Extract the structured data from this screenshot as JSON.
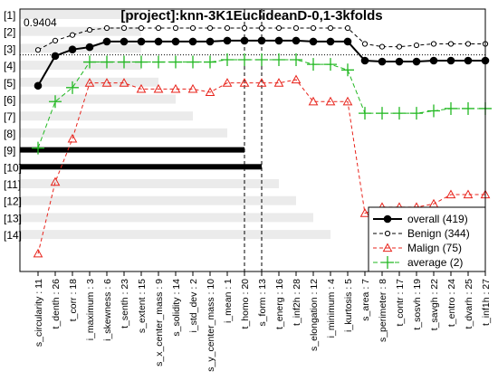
{
  "chart_data": {
    "type": "line",
    "title": "[project]:knn-3K1EuclideanD-0,1-3kfolds",
    "annotation": "0.9404",
    "row_labels": [
      "[1]",
      "[2]",
      "[3]",
      "[4]",
      "[5]",
      "[6]",
      "[7]",
      "[8]",
      "[9]",
      "[10]",
      "[11]",
      "[12]",
      "[13]",
      "[14]"
    ],
    "categories": [
      "s_circularity : 11",
      "t_denth : 26",
      "t_corr : 18",
      "i_maximum : 3",
      "i_skewness : 6",
      "t_senth : 23",
      "s_extent : 15",
      "s_x_center_mass : 9",
      "s_solidity : 14",
      "i_std_dev : 2",
      "s_y_center_mass : 10",
      "i_mean : 1",
      "t_homo : 20",
      "s_form : 13",
      "t_energ : 16",
      "t_inf2h : 28",
      "s_elongation : 12",
      "i_minimum : 4",
      "i_kurtosis : 5",
      "s_area : 7",
      "s_perimeter : 8",
      "t_contr : 17",
      "t_sosvh : 19",
      "t_savgh : 22",
      "t_entro : 24",
      "t_dvarh : 25",
      "t_inf1h : 27"
    ],
    "series": [
      {
        "name": "overall (419)",
        "values": [
          0.874,
          0.938,
          0.952,
          0.957,
          0.969,
          0.969,
          0.969,
          0.969,
          0.969,
          0.969,
          0.969,
          0.971,
          0.971,
          0.971,
          0.971,
          0.971,
          0.969,
          0.969,
          0.969,
          0.928,
          0.926,
          0.926,
          0.926,
          0.928,
          0.928,
          0.928,
          0.928
        ]
      },
      {
        "name": "Benign  (344)",
        "values": [
          0.951,
          0.971,
          0.983,
          0.994,
          0.998,
          0.998,
          0.998,
          0.998,
          0.998,
          0.998,
          0.998,
          0.998,
          0.998,
          0.998,
          0.998,
          0.998,
          0.998,
          0.998,
          0.998,
          0.964,
          0.958,
          0.958,
          0.961,
          0.964,
          0.964,
          0.964,
          0.964
        ]
      },
      {
        "name": "Malign  (75)",
        "values": [
          0.513,
          0.667,
          0.76,
          0.88,
          0.88,
          0.88,
          0.867,
          0.867,
          0.867,
          0.867,
          0.86,
          0.88,
          0.88,
          0.88,
          0.88,
          0.887,
          0.84,
          0.84,
          0.84,
          0.6,
          0.613,
          0.613,
          0.613,
          0.62,
          0.64,
          0.64,
          0.64
        ]
      },
      {
        "name": "average (2)",
        "values": [
          0.74,
          0.84,
          0.87,
          0.925,
          0.925,
          0.925,
          0.925,
          0.925,
          0.925,
          0.925,
          0.925,
          0.93,
          0.93,
          0.93,
          0.93,
          0.93,
          0.92,
          0.92,
          0.908,
          0.815,
          0.815,
          0.815,
          0.815,
          0.82,
          0.825,
          0.825,
          0.825
        ]
      }
    ],
    "ylim": [
      0.5,
      1.0
    ],
    "reference_line_y": 0.9404,
    "vertical_markers": [
      "t_homo : 20",
      "s_form : 13"
    ],
    "background_bars": [
      {
        "row": "[1]",
        "end": "s_extent : 15",
        "color": "light"
      },
      {
        "row": "[2]",
        "end": "s_extent : 15",
        "color": "light"
      },
      {
        "row": "[3]",
        "end": "s_extent : 15",
        "color": "light"
      },
      {
        "row": "[4]",
        "end": "s_extent : 15",
        "color": "light"
      },
      {
        "row": "[5]",
        "end": "s_x_center_mass : 9",
        "color": "light"
      },
      {
        "row": "[6]",
        "end": "s_solidity : 14",
        "color": "light"
      },
      {
        "row": "[7]",
        "end": "i_std_dev : 2",
        "color": "light"
      },
      {
        "row": "[8]",
        "end": "i_mean : 1",
        "color": "light"
      },
      {
        "row": "[9]",
        "end": "t_homo : 20",
        "color": "black"
      },
      {
        "row": "[10]",
        "end": "s_form : 13",
        "color": "black"
      },
      {
        "row": "[11]",
        "end": "t_energ : 16",
        "color": "light"
      },
      {
        "row": "[12]",
        "end": "t_inf2h : 28",
        "color": "light"
      },
      {
        "row": "[13]",
        "end": "s_elongation : 12",
        "color": "light"
      },
      {
        "row": "[14]",
        "end": "i_minimum : 4",
        "color": "light"
      }
    ],
    "legend_position": "bottom-right",
    "colors": {
      "overall": "#000000",
      "benign": "#000000",
      "malign": "#e8231b",
      "average": "#22b822",
      "bar_light": "#ebebeb",
      "bar_dark": "#000000"
    }
  }
}
